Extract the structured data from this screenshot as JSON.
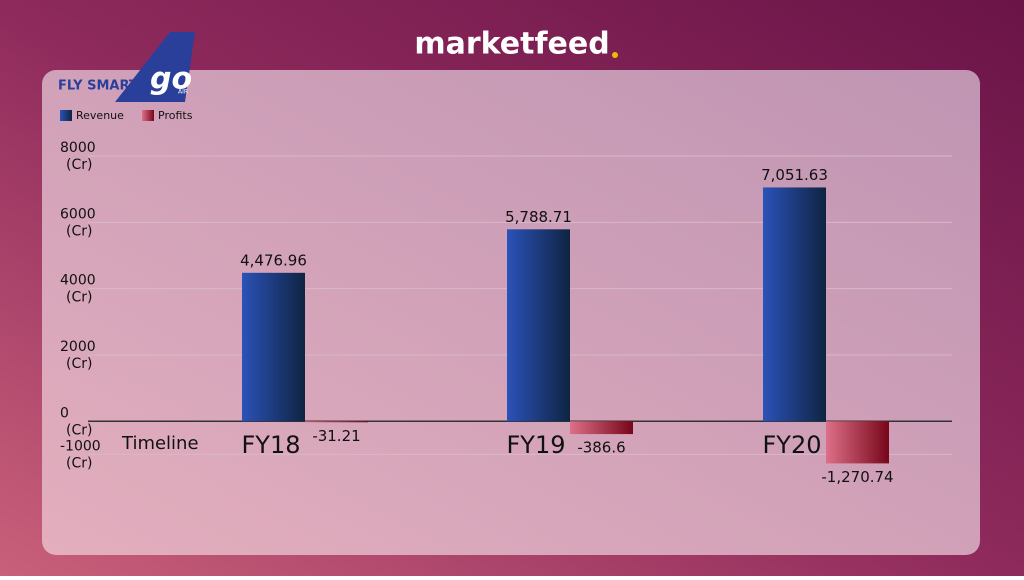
{
  "header": {
    "brand": "marketfeed",
    "logo_tagline": "FLY SMART",
    "logo_mark": "go",
    "logo_sub": "AIR"
  },
  "chart_data": {
    "type": "bar",
    "categories": [
      "FY18",
      "FY19",
      "FY20"
    ],
    "x_label": "Timeline",
    "y_unit": "(Cr)",
    "series": [
      {
        "name": "Revenue",
        "color": "#1f3f8f",
        "values": [
          4476.96,
          5788.71,
          7051.63
        ],
        "value_labels": [
          "4,476.96",
          "5,788.71",
          "7,051.63"
        ]
      },
      {
        "name": "Profits",
        "color": "#a3233c",
        "values": [
          -31.21,
          -386.6,
          -1270.74
        ],
        "value_labels": [
          "-31.21",
          "-386.6",
          "-1,270.74"
        ]
      }
    ],
    "ylim": [
      -1500,
      8000
    ],
    "yticks": [
      -1000,
      0,
      2000,
      4000,
      6000,
      8000
    ],
    "grid": true,
    "legend": "top-left"
  }
}
